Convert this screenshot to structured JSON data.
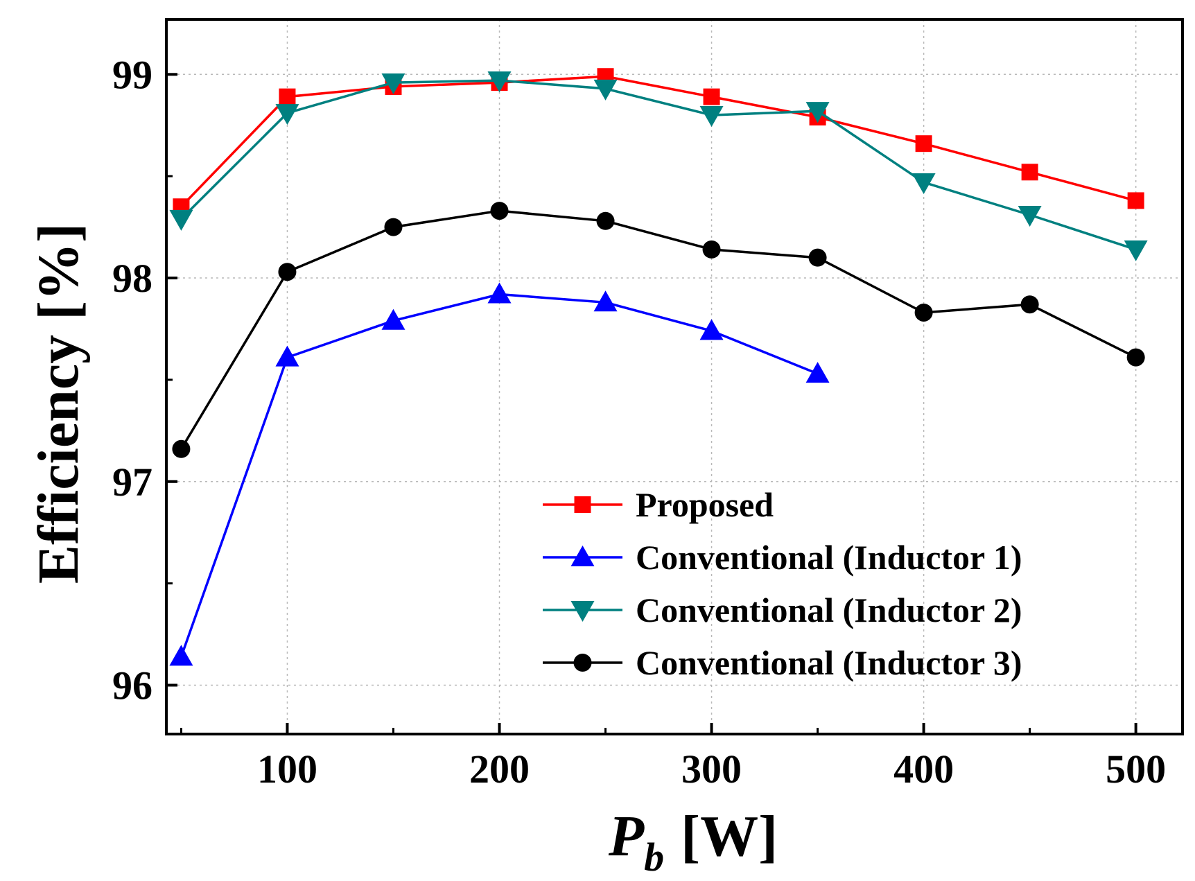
{
  "chart_data": {
    "type": "line",
    "ylabel": "Efficiency [%]",
    "xlabel": {
      "main": "P",
      "sub": "b",
      "unit": "[W]"
    },
    "xlim": [
      43,
      522
    ],
    "ylim": [
      95.76,
      99.27
    ],
    "xticks": [
      100,
      200,
      300,
      400,
      500
    ],
    "yticks": [
      96,
      97,
      98,
      99
    ],
    "grid": true,
    "legend_position": "bottom-right",
    "series": [
      {
        "name": "Proposed",
        "color": "#ff0000",
        "marker": "square",
        "x": [
          50,
          100,
          150,
          200,
          250,
          300,
          350,
          400,
          450,
          500
        ],
        "y": [
          98.35,
          98.89,
          98.94,
          98.96,
          98.99,
          98.89,
          98.79,
          98.66,
          98.52,
          98.38
        ]
      },
      {
        "name": "Conventional (Inductor 1)",
        "color": "#0000ff",
        "marker": "triangle-up",
        "x": [
          50,
          100,
          150,
          200,
          250,
          300,
          350
        ],
        "y": [
          96.14,
          97.61,
          97.79,
          97.92,
          97.88,
          97.74,
          97.53
        ]
      },
      {
        "name": "Conventional (Inductor 2)",
        "color": "#008080",
        "marker": "triangle-down",
        "x": [
          50,
          100,
          150,
          200,
          250,
          300,
          350,
          400,
          450,
          500
        ],
        "y": [
          98.29,
          98.81,
          98.96,
          98.97,
          98.93,
          98.8,
          98.82,
          98.47,
          98.31,
          98.14
        ]
      },
      {
        "name": "Conventional (Inductor 3)",
        "color": "#000000",
        "marker": "circle",
        "x": [
          50,
          100,
          150,
          200,
          250,
          300,
          350,
          400,
          450,
          500
        ],
        "y": [
          97.16,
          98.03,
          98.25,
          98.33,
          98.28,
          98.14,
          98.1,
          97.83,
          97.87,
          97.61
        ]
      }
    ]
  }
}
